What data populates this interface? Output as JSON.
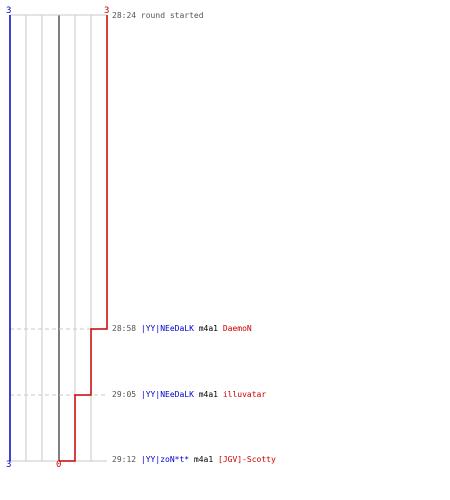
{
  "scores": {
    "blue_top": "3",
    "red_top": "3",
    "blue_bottom": "3",
    "red_bottom": "0"
  },
  "colors": {
    "blue": "#0000cc",
    "red": "#cc0000",
    "grid": "#c8c8c8",
    "center": "#555555"
  },
  "events": [
    {
      "time": "28:24",
      "text": "round started"
    },
    {
      "time": "28:58",
      "killer": "|YY|NEeDaLK",
      "weapon": "m4a1",
      "victim": "DaemoN"
    },
    {
      "time": "29:05",
      "killer": "|YY|NEeDaLK",
      "weapon": "m4a1",
      "victim": "illuvatar"
    },
    {
      "time": "29:12",
      "killer": "|YY|zoN*t*",
      "weapon": "m4a1",
      "victim": "[JGV]-Scotty"
    }
  ]
}
